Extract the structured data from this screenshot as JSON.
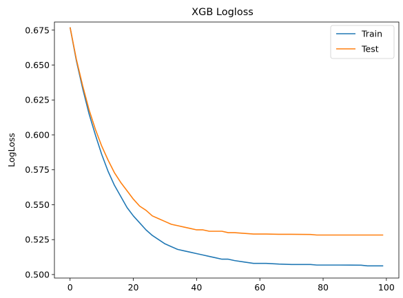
{
  "chart_data": {
    "type": "line",
    "title": "XGB Logloss",
    "xlabel": "",
    "ylabel": "LogLoss",
    "xlim": [
      -4.95,
      103.95
    ],
    "ylim": [
      0.4975,
      0.6808
    ],
    "xticks": [
      0,
      20,
      40,
      60,
      80,
      100
    ],
    "yticks": [
      0.5,
      0.525,
      0.55,
      0.575,
      0.6,
      0.625,
      0.65,
      0.675
    ],
    "ytick_labels": [
      "0.500",
      "0.525",
      "0.550",
      "0.575",
      "0.600",
      "0.625",
      "0.650",
      "0.675"
    ],
    "grid": false,
    "legend_position": "top-right",
    "series": [
      {
        "name": "Train",
        "color": "#1f77b4",
        "points": [
          [
            0,
            0.677
          ],
          [
            2,
            0.653
          ],
          [
            4,
            0.633
          ],
          [
            6,
            0.615
          ],
          [
            8,
            0.6
          ],
          [
            10,
            0.586
          ],
          [
            12,
            0.574
          ],
          [
            14,
            0.564
          ],
          [
            16,
            0.556
          ],
          [
            18,
            0.548
          ],
          [
            20,
            0.542
          ],
          [
            22,
            0.537
          ],
          [
            24,
            0.532
          ],
          [
            26,
            0.528
          ],
          [
            28,
            0.525
          ],
          [
            30,
            0.522
          ],
          [
            32,
            0.52
          ],
          [
            34,
            0.518
          ],
          [
            36,
            0.517
          ],
          [
            38,
            0.516
          ],
          [
            40,
            0.515
          ],
          [
            42,
            0.514
          ],
          [
            44,
            0.513
          ],
          [
            46,
            0.512
          ],
          [
            48,
            0.511
          ],
          [
            50,
            0.511
          ],
          [
            52,
            0.51
          ],
          [
            55,
            0.509
          ],
          [
            58,
            0.508
          ],
          [
            62,
            0.508
          ],
          [
            66,
            0.5075
          ],
          [
            70,
            0.5072
          ],
          [
            76,
            0.5072
          ],
          [
            78,
            0.5068
          ],
          [
            85,
            0.5068
          ],
          [
            92,
            0.5067
          ],
          [
            94,
            0.5062
          ],
          [
            99,
            0.5062
          ]
        ]
      },
      {
        "name": "Test",
        "color": "#ff7f0e",
        "points": [
          [
            0,
            0.677
          ],
          [
            2,
            0.654
          ],
          [
            4,
            0.635
          ],
          [
            6,
            0.618
          ],
          [
            8,
            0.604
          ],
          [
            10,
            0.592
          ],
          [
            12,
            0.582
          ],
          [
            14,
            0.573
          ],
          [
            16,
            0.566
          ],
          [
            18,
            0.56
          ],
          [
            20,
            0.554
          ],
          [
            22,
            0.549
          ],
          [
            24,
            0.546
          ],
          [
            26,
            0.542
          ],
          [
            28,
            0.54
          ],
          [
            30,
            0.538
          ],
          [
            32,
            0.536
          ],
          [
            34,
            0.535
          ],
          [
            36,
            0.534
          ],
          [
            38,
            0.533
          ],
          [
            40,
            0.532
          ],
          [
            42,
            0.532
          ],
          [
            44,
            0.531
          ],
          [
            46,
            0.531
          ],
          [
            48,
            0.531
          ],
          [
            50,
            0.53
          ],
          [
            52,
            0.53
          ],
          [
            55,
            0.5295
          ],
          [
            58,
            0.529
          ],
          [
            62,
            0.529
          ],
          [
            66,
            0.5288
          ],
          [
            70,
            0.5288
          ],
          [
            76,
            0.5287
          ],
          [
            78,
            0.5283
          ],
          [
            85,
            0.5283
          ],
          [
            92,
            0.5283
          ],
          [
            99,
            0.5283
          ]
        ]
      }
    ]
  }
}
